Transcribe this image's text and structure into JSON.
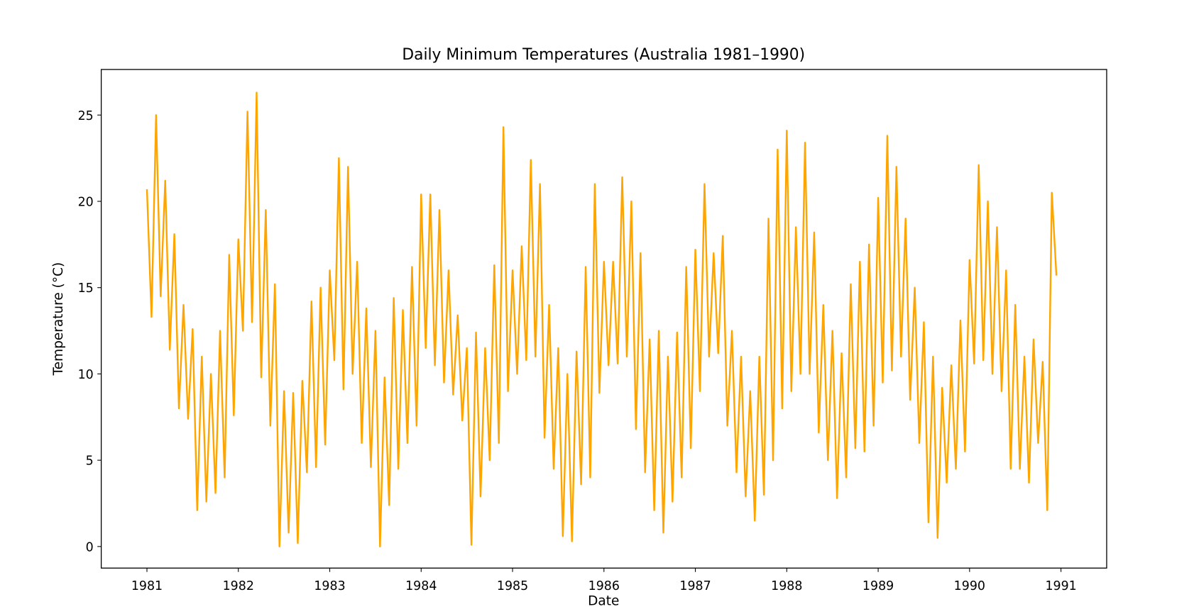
{
  "chart_data": {
    "type": "line",
    "title": "Daily Minimum Temperatures (Australia 1981–1990)",
    "xlabel": "Date",
    "ylabel": "Temperature (°C)",
    "color": "#ffa500",
    "x": [
      1981,
      1981.05,
      1981.1,
      1981.15,
      1981.2,
      1981.25,
      1981.3,
      1981.35,
      1981.4,
      1981.45,
      1981.5,
      1981.55,
      1981.6,
      1981.65,
      1981.7,
      1981.75,
      1981.8,
      1981.85,
      1981.9,
      1981.95,
      1982,
      1982.05,
      1982.1,
      1982.15,
      1982.2,
      1982.25,
      1982.3,
      1982.35,
      1982.4,
      1982.45,
      1982.5,
      1982.55,
      1982.6,
      1982.65,
      1982.7,
      1982.75,
      1982.8,
      1982.85,
      1982.9,
      1982.95,
      1983,
      1983.05,
      1983.1,
      1983.15,
      1983.2,
      1983.25,
      1983.3,
      1983.35,
      1983.4,
      1983.45,
      1983.5,
      1983.55,
      1983.6,
      1983.65,
      1983.7,
      1983.75,
      1983.8,
      1983.85,
      1983.9,
      1983.95,
      1984,
      1984.05,
      1984.1,
      1984.15,
      1984.2,
      1984.25,
      1984.3,
      1984.35,
      1984.4,
      1984.45,
      1984.5,
      1984.55,
      1984.6,
      1984.65,
      1984.7,
      1984.75,
      1984.8,
      1984.85,
      1984.9,
      1984.95,
      1985,
      1985.05,
      1985.1,
      1985.15,
      1985.2,
      1985.25,
      1985.3,
      1985.35,
      1985.4,
      1985.45,
      1985.5,
      1985.55,
      1985.6,
      1985.65,
      1985.7,
      1985.75,
      1985.8,
      1985.85,
      1985.9,
      1985.95,
      1986,
      1986.05,
      1986.1,
      1986.15,
      1986.2,
      1986.25,
      1986.3,
      1986.35,
      1986.4,
      1986.45,
      1986.5,
      1986.55,
      1986.6,
      1986.65,
      1986.7,
      1986.75,
      1986.8,
      1986.85,
      1986.9,
      1986.95,
      1987,
      1987.05,
      1987.1,
      1987.15,
      1987.2,
      1987.25,
      1987.3,
      1987.35,
      1987.4,
      1987.45,
      1987.5,
      1987.55,
      1987.6,
      1987.65,
      1987.7,
      1987.75,
      1987.8,
      1987.85,
      1987.9,
      1987.95,
      1988,
      1988.05,
      1988.1,
      1988.15,
      1988.2,
      1988.25,
      1988.3,
      1988.35,
      1988.4,
      1988.45,
      1988.5,
      1988.55,
      1988.6,
      1988.65,
      1988.7,
      1988.75,
      1988.8,
      1988.85,
      1988.9,
      1988.95,
      1989,
      1989.05,
      1989.1,
      1989.15,
      1989.2,
      1989.25,
      1989.3,
      1989.35,
      1989.4,
      1989.45,
      1989.5,
      1989.55,
      1989.6,
      1989.65,
      1989.7,
      1989.75,
      1989.8,
      1989.85,
      1989.9,
      1989.95,
      1990,
      1990.05,
      1990.1,
      1990.15,
      1990.2,
      1990.25,
      1990.3,
      1990.35,
      1990.4,
      1990.45,
      1990.5,
      1990.55,
      1990.6,
      1990.65,
      1990.7,
      1990.75,
      1990.8,
      1990.85,
      1990.9,
      1990.95
    ],
    "values": [
      20.7,
      13.3,
      25.0,
      14.5,
      21.2,
      11.4,
      18.1,
      8.0,
      14.0,
      7.4,
      12.6,
      2.1,
      11.0,
      2.6,
      10.0,
      3.1,
      12.5,
      4.0,
      16.9,
      7.6,
      17.8,
      12.5,
      25.2,
      13.0,
      26.3,
      9.8,
      19.5,
      7.0,
      15.2,
      0.0,
      9.0,
      0.8,
      8.9,
      0.2,
      9.6,
      4.3,
      14.2,
      4.6,
      15.0,
      5.9,
      16.0,
      10.8,
      22.5,
      9.1,
      22.0,
      10.0,
      16.5,
      6.0,
      13.8,
      4.6,
      12.5,
      0.0,
      9.8,
      2.4,
      14.4,
      4.5,
      13.7,
      6.0,
      16.2,
      7.0,
      20.4,
      11.5,
      20.4,
      10.5,
      19.5,
      9.5,
      16.0,
      8.8,
      13.4,
      7.3,
      11.5,
      0.1,
      12.4,
      2.9,
      11.5,
      5.0,
      16.3,
      6.0,
      24.3,
      9.0,
      16.0,
      10.0,
      17.4,
      10.8,
      22.4,
      11.0,
      21.0,
      6.3,
      14.0,
      4.5,
      11.5,
      0.6,
      10.0,
      0.3,
      11.3,
      3.6,
      16.2,
      4.0,
      21.0,
      8.9,
      16.5,
      10.5,
      16.5,
      10.6,
      21.4,
      11.0,
      20.0,
      6.8,
      17.0,
      4.3,
      12.0,
      2.1,
      12.5,
      0.8,
      11.0,
      2.6,
      12.4,
      4.0,
      16.2,
      5.7,
      17.2,
      9.0,
      21.0,
      11.0,
      17.0,
      11.2,
      18.0,
      7.0,
      12.5,
      4.3,
      11.0,
      2.9,
      9.0,
      1.5,
      11.0,
      3.0,
      19.0,
      5.0,
      23.0,
      8.0,
      24.1,
      9.0,
      18.5,
      10.0,
      23.4,
      10.0,
      18.2,
      6.6,
      14.0,
      5.0,
      12.5,
      2.8,
      11.2,
      4.0,
      15.2,
      5.7,
      16.5,
      5.5,
      17.5,
      7.0,
      20.2,
      9.5,
      23.8,
      10.2,
      22.0,
      11.0,
      19.0,
      8.5,
      15.0,
      6.0,
      13.0,
      1.4,
      11.0,
      0.5,
      9.2,
      3.7,
      10.5,
      4.5,
      13.1,
      5.5,
      16.6,
      10.6,
      22.1,
      10.8,
      20.0,
      10.0,
      18.5,
      9.0,
      16.0,
      4.5,
      14.0,
      4.5,
      11.0,
      3.7,
      12.0,
      6.0,
      10.7,
      2.1,
      20.5,
      15.7
    ],
    "xlim": [
      1980.5,
      1991.5
    ],
    "xticks": [
      1981,
      1982,
      1983,
      1984,
      1985,
      1986,
      1987,
      1988,
      1989,
      1990,
      1991
    ],
    "ylim": [
      -1.25,
      27.64
    ],
    "yticks": [
      0,
      5,
      10,
      15,
      20,
      25
    ]
  }
}
